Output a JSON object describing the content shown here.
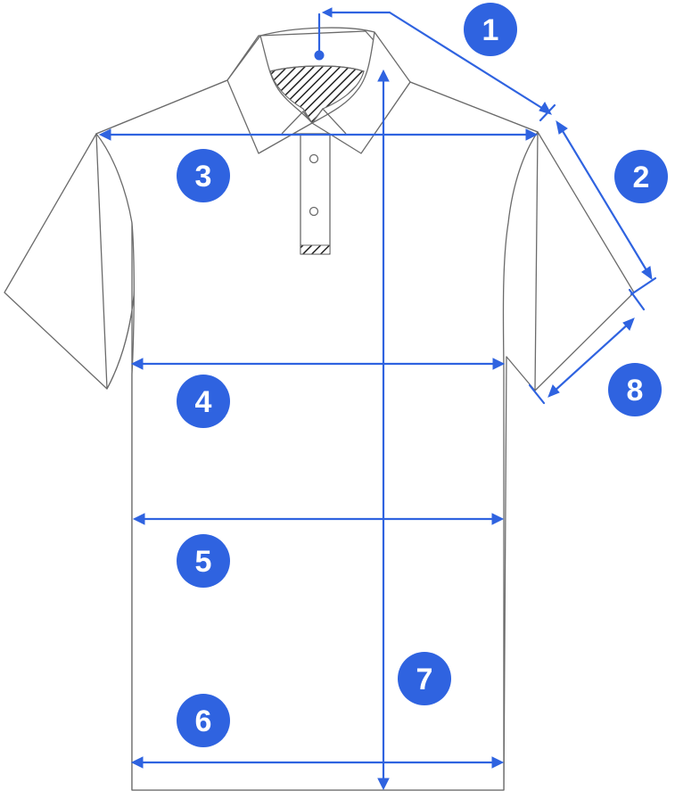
{
  "colors": {
    "accent": "#2f63e0",
    "outline": "#6b6b6b",
    "background": "#ffffff"
  },
  "badges": [
    {
      "id": "1",
      "label": "1"
    },
    {
      "id": "2",
      "label": "2"
    },
    {
      "id": "3",
      "label": "3"
    },
    {
      "id": "4",
      "label": "4"
    },
    {
      "id": "5",
      "label": "5"
    },
    {
      "id": "6",
      "label": "6"
    },
    {
      "id": "7",
      "label": "7"
    },
    {
      "id": "8",
      "label": "8"
    }
  ]
}
